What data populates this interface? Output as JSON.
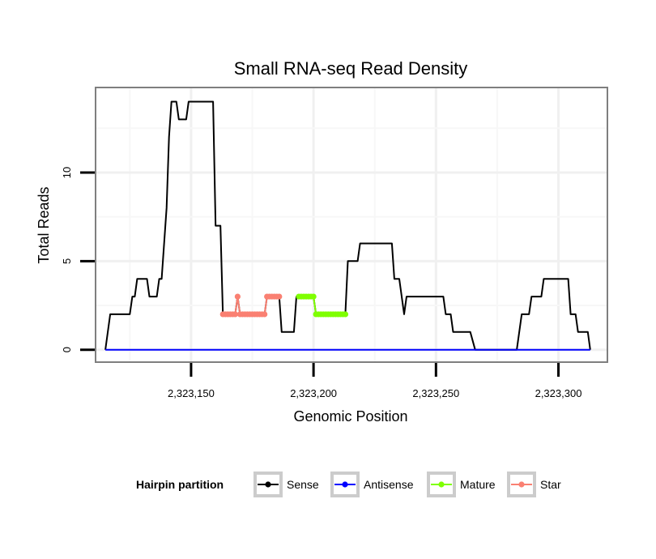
{
  "chart_data": {
    "type": "line",
    "title": "Small RNA-seq Read Density",
    "xlabel": "Genomic Position",
    "ylabel": "Total Reads",
    "xlim": [
      2323111,
      2323320
    ],
    "ylim": [
      -0.7,
      14.8
    ],
    "x_ticks": [
      {
        "value": 2323150,
        "label": "2,323,150"
      },
      {
        "value": 2323200,
        "label": "2,323,200"
      },
      {
        "value": 2323250,
        "label": "2,323,250"
      },
      {
        "value": 2323300,
        "label": "2,323,300"
      }
    ],
    "y_ticks": [
      {
        "value": 0,
        "label": "0"
      },
      {
        "value": 5,
        "label": "5"
      },
      {
        "value": 10,
        "label": "10"
      }
    ],
    "grid": true,
    "legend": {
      "title": "Hairpin partition",
      "position": "bottom",
      "entries": [
        {
          "name": "Sense",
          "color": "#000000"
        },
        {
          "name": "Antisense",
          "color": "#0000ff"
        },
        {
          "name": "Mature",
          "color": "#7fff00"
        },
        {
          "name": "Star",
          "color": "#fa8072"
        }
      ]
    },
    "series": [
      {
        "name": "Sense",
        "color": "#000000",
        "markers": false,
        "points": [
          [
            2323115,
            0
          ],
          [
            2323117,
            2
          ],
          [
            2323125,
            2
          ],
          [
            2323126,
            3
          ],
          [
            2323127,
            3
          ],
          [
            2323128,
            4
          ],
          [
            2323132,
            4
          ],
          [
            2323133,
            3
          ],
          [
            2323136,
            3
          ],
          [
            2323137,
            4
          ],
          [
            2323138,
            4
          ],
          [
            2323140,
            8
          ],
          [
            2323141,
            12
          ],
          [
            2323142,
            14
          ],
          [
            2323144,
            14
          ],
          [
            2323145,
            13
          ],
          [
            2323148,
            13
          ],
          [
            2323149,
            14
          ],
          [
            2323159,
            14
          ],
          [
            2323160,
            7
          ],
          [
            2323162,
            7
          ],
          [
            2323163,
            2
          ],
          [
            2323168,
            2
          ],
          [
            2323169,
            3
          ],
          [
            2323170,
            2
          ],
          [
            2323180,
            2
          ],
          [
            2323181,
            3
          ],
          [
            2323186,
            3
          ],
          [
            2323187,
            1
          ],
          [
            2323192,
            1
          ],
          [
            2323193,
            3
          ],
          [
            2323200,
            3
          ],
          [
            2323201,
            2
          ],
          [
            2323213,
            2
          ],
          [
            2323214,
            5
          ],
          [
            2323218,
            5
          ],
          [
            2323219,
            6
          ],
          [
            2323232,
            6
          ],
          [
            2323233,
            4
          ],
          [
            2323235,
            4
          ],
          [
            2323237,
            2
          ],
          [
            2323238,
            3
          ],
          [
            2323253,
            3
          ],
          [
            2323254,
            2
          ],
          [
            2323256,
            2
          ],
          [
            2323257,
            1
          ],
          [
            2323264,
            1
          ],
          [
            2323266,
            0
          ],
          [
            2323283,
            0
          ],
          [
            2323285,
            2
          ],
          [
            2323288,
            2
          ],
          [
            2323289,
            3
          ],
          [
            2323293,
            3
          ],
          [
            2323294,
            4
          ],
          [
            2323304,
            4
          ],
          [
            2323305,
            2
          ],
          [
            2323307,
            2
          ],
          [
            2323308,
            1
          ],
          [
            2323312,
            1
          ],
          [
            2323313,
            0
          ]
        ]
      },
      {
        "name": "Antisense",
        "color": "#0000ff",
        "markers": false,
        "points": [
          [
            2323115,
            0
          ],
          [
            2323313,
            0
          ]
        ]
      },
      {
        "name": "Mature",
        "color": "#7fff00",
        "markers": true,
        "points": [
          [
            2323194,
            3
          ],
          [
            2323195,
            3
          ],
          [
            2323196,
            3
          ],
          [
            2323197,
            3
          ],
          [
            2323198,
            3
          ],
          [
            2323199,
            3
          ],
          [
            2323200,
            3
          ],
          [
            2323201,
            2
          ],
          [
            2323202,
            2
          ],
          [
            2323203,
            2
          ],
          [
            2323204,
            2
          ],
          [
            2323205,
            2
          ],
          [
            2323206,
            2
          ],
          [
            2323207,
            2
          ],
          [
            2323208,
            2
          ],
          [
            2323209,
            2
          ],
          [
            2323210,
            2
          ],
          [
            2323211,
            2
          ],
          [
            2323212,
            2
          ],
          [
            2323213,
            2
          ]
        ]
      },
      {
        "name": "Star",
        "color": "#fa8072",
        "markers": true,
        "points": [
          [
            2323163,
            2
          ],
          [
            2323164,
            2
          ],
          [
            2323165,
            2
          ],
          [
            2323166,
            2
          ],
          [
            2323167,
            2
          ],
          [
            2323168,
            2
          ],
          [
            2323169,
            3
          ],
          [
            2323170,
            2
          ],
          [
            2323171,
            2
          ],
          [
            2323172,
            2
          ],
          [
            2323173,
            2
          ],
          [
            2323174,
            2
          ],
          [
            2323175,
            2
          ],
          [
            2323176,
            2
          ],
          [
            2323177,
            2
          ],
          [
            2323178,
            2
          ],
          [
            2323179,
            2
          ],
          [
            2323180,
            2
          ],
          [
            2323181,
            3
          ],
          [
            2323182,
            3
          ],
          [
            2323183,
            3
          ],
          [
            2323184,
            3
          ],
          [
            2323185,
            3
          ],
          [
            2323186,
            3
          ]
        ]
      }
    ]
  }
}
